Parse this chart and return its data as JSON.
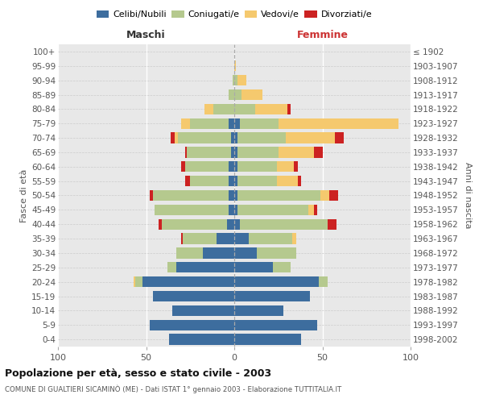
{
  "age_groups": [
    "100+",
    "95-99",
    "90-94",
    "85-89",
    "80-84",
    "75-79",
    "70-74",
    "65-69",
    "60-64",
    "55-59",
    "50-54",
    "45-49",
    "40-44",
    "35-39",
    "30-34",
    "25-29",
    "20-24",
    "15-19",
    "10-14",
    "5-9",
    "0-4"
  ],
  "birth_years": [
    "≤ 1902",
    "1903-1907",
    "1908-1912",
    "1913-1917",
    "1918-1922",
    "1923-1927",
    "1928-1932",
    "1933-1937",
    "1938-1942",
    "1943-1947",
    "1948-1952",
    "1953-1957",
    "1958-1962",
    "1963-1967",
    "1968-1972",
    "1973-1977",
    "1978-1982",
    "1983-1987",
    "1988-1992",
    "1993-1997",
    "1998-2002"
  ],
  "male_celibi": [
    0,
    0,
    0,
    0,
    0,
    3,
    2,
    2,
    3,
    3,
    3,
    3,
    4,
    10,
    18,
    33,
    52,
    46,
    35,
    48,
    37
  ],
  "male_coniugati": [
    0,
    0,
    1,
    3,
    12,
    22,
    30,
    25,
    25,
    22,
    43,
    42,
    37,
    19,
    15,
    5,
    4,
    0,
    0,
    0,
    0
  ],
  "male_vedovi": [
    0,
    0,
    0,
    0,
    5,
    5,
    2,
    0,
    0,
    0,
    0,
    0,
    0,
    0,
    0,
    0,
    1,
    0,
    0,
    0,
    0
  ],
  "male_divorziati": [
    0,
    0,
    0,
    0,
    0,
    0,
    2,
    1,
    2,
    3,
    2,
    0,
    2,
    1,
    0,
    0,
    0,
    0,
    0,
    0,
    0
  ],
  "female_nubili": [
    0,
    0,
    0,
    0,
    0,
    3,
    2,
    2,
    2,
    2,
    2,
    2,
    3,
    8,
    13,
    22,
    48,
    43,
    28,
    47,
    38
  ],
  "female_coniugate": [
    0,
    0,
    2,
    4,
    12,
    22,
    27,
    23,
    22,
    22,
    47,
    40,
    50,
    25,
    22,
    10,
    5,
    0,
    0,
    0,
    0
  ],
  "female_vedove": [
    0,
    1,
    5,
    12,
    18,
    68,
    28,
    20,
    10,
    12,
    5,
    3,
    0,
    2,
    0,
    0,
    0,
    0,
    0,
    0,
    0
  ],
  "female_divorziate": [
    0,
    0,
    0,
    0,
    2,
    0,
    5,
    5,
    2,
    2,
    5,
    2,
    5,
    0,
    0,
    0,
    0,
    0,
    0,
    0,
    0
  ],
  "color_celibi": "#3d6d9e",
  "color_coniugati": "#b5c98e",
  "color_vedovi": "#f5c96e",
  "color_divorziati": "#cc2222",
  "xlim": 100,
  "title": "Popolazione per età, sesso e stato civile - 2003",
  "subtitle": "COMUNE DI GUALTIERI SICAMINÒ (ME) - Dati ISTAT 1° gennaio 2003 - Elaborazione TUTTITALIA.IT",
  "label_maschi": "Maschi",
  "label_femmine": "Femmine",
  "ylabel_left": "Fasce di età",
  "ylabel_right": "Anni di nascita",
  "legend_labels": [
    "Celibi/Nubili",
    "Coniugati/e",
    "Vedovi/e",
    "Divorziati/e"
  ],
  "bg_color": "#e8e8e8",
  "fig_bg": "#ffffff"
}
